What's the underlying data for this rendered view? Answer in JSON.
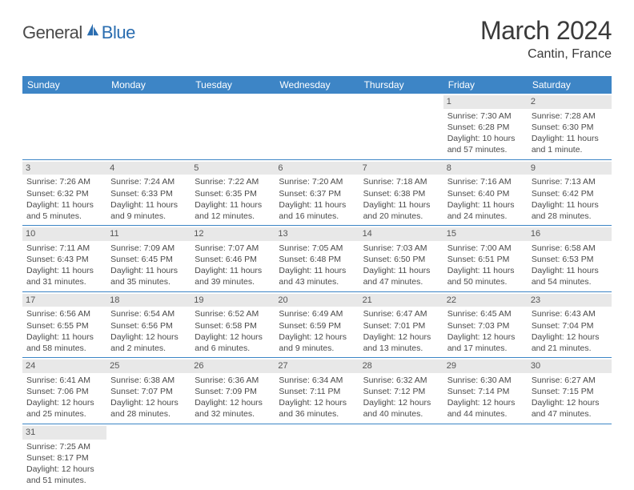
{
  "logo": {
    "text1": "General",
    "text2": "Blue"
  },
  "title": "March 2024",
  "location": "Cantin, France",
  "colors": {
    "header_bg": "#3d85c6",
    "header_text": "#ffffff",
    "daynum_bg": "#e8e8e8",
    "rule": "#3d85c6",
    "logo_blue": "#2a6db0",
    "text": "#4a4a4a"
  },
  "day_headers": [
    "Sunday",
    "Monday",
    "Tuesday",
    "Wednesday",
    "Thursday",
    "Friday",
    "Saturday"
  ],
  "weeks": [
    [
      {
        "n": "",
        "lines": []
      },
      {
        "n": "",
        "lines": []
      },
      {
        "n": "",
        "lines": []
      },
      {
        "n": "",
        "lines": []
      },
      {
        "n": "",
        "lines": []
      },
      {
        "n": "1",
        "lines": [
          "Sunrise: 7:30 AM",
          "Sunset: 6:28 PM",
          "Daylight: 10 hours",
          "and 57 minutes."
        ]
      },
      {
        "n": "2",
        "lines": [
          "Sunrise: 7:28 AM",
          "Sunset: 6:30 PM",
          "Daylight: 11 hours",
          "and 1 minute."
        ]
      }
    ],
    [
      {
        "n": "3",
        "lines": [
          "Sunrise: 7:26 AM",
          "Sunset: 6:32 PM",
          "Daylight: 11 hours",
          "and 5 minutes."
        ]
      },
      {
        "n": "4",
        "lines": [
          "Sunrise: 7:24 AM",
          "Sunset: 6:33 PM",
          "Daylight: 11 hours",
          "and 9 minutes."
        ]
      },
      {
        "n": "5",
        "lines": [
          "Sunrise: 7:22 AM",
          "Sunset: 6:35 PM",
          "Daylight: 11 hours",
          "and 12 minutes."
        ]
      },
      {
        "n": "6",
        "lines": [
          "Sunrise: 7:20 AM",
          "Sunset: 6:37 PM",
          "Daylight: 11 hours",
          "and 16 minutes."
        ]
      },
      {
        "n": "7",
        "lines": [
          "Sunrise: 7:18 AM",
          "Sunset: 6:38 PM",
          "Daylight: 11 hours",
          "and 20 minutes."
        ]
      },
      {
        "n": "8",
        "lines": [
          "Sunrise: 7:16 AM",
          "Sunset: 6:40 PM",
          "Daylight: 11 hours",
          "and 24 minutes."
        ]
      },
      {
        "n": "9",
        "lines": [
          "Sunrise: 7:13 AM",
          "Sunset: 6:42 PM",
          "Daylight: 11 hours",
          "and 28 minutes."
        ]
      }
    ],
    [
      {
        "n": "10",
        "lines": [
          "Sunrise: 7:11 AM",
          "Sunset: 6:43 PM",
          "Daylight: 11 hours",
          "and 31 minutes."
        ]
      },
      {
        "n": "11",
        "lines": [
          "Sunrise: 7:09 AM",
          "Sunset: 6:45 PM",
          "Daylight: 11 hours",
          "and 35 minutes."
        ]
      },
      {
        "n": "12",
        "lines": [
          "Sunrise: 7:07 AM",
          "Sunset: 6:46 PM",
          "Daylight: 11 hours",
          "and 39 minutes."
        ]
      },
      {
        "n": "13",
        "lines": [
          "Sunrise: 7:05 AM",
          "Sunset: 6:48 PM",
          "Daylight: 11 hours",
          "and 43 minutes."
        ]
      },
      {
        "n": "14",
        "lines": [
          "Sunrise: 7:03 AM",
          "Sunset: 6:50 PM",
          "Daylight: 11 hours",
          "and 47 minutes."
        ]
      },
      {
        "n": "15",
        "lines": [
          "Sunrise: 7:00 AM",
          "Sunset: 6:51 PM",
          "Daylight: 11 hours",
          "and 50 minutes."
        ]
      },
      {
        "n": "16",
        "lines": [
          "Sunrise: 6:58 AM",
          "Sunset: 6:53 PM",
          "Daylight: 11 hours",
          "and 54 minutes."
        ]
      }
    ],
    [
      {
        "n": "17",
        "lines": [
          "Sunrise: 6:56 AM",
          "Sunset: 6:55 PM",
          "Daylight: 11 hours",
          "and 58 minutes."
        ]
      },
      {
        "n": "18",
        "lines": [
          "Sunrise: 6:54 AM",
          "Sunset: 6:56 PM",
          "Daylight: 12 hours",
          "and 2 minutes."
        ]
      },
      {
        "n": "19",
        "lines": [
          "Sunrise: 6:52 AM",
          "Sunset: 6:58 PM",
          "Daylight: 12 hours",
          "and 6 minutes."
        ]
      },
      {
        "n": "20",
        "lines": [
          "Sunrise: 6:49 AM",
          "Sunset: 6:59 PM",
          "Daylight: 12 hours",
          "and 9 minutes."
        ]
      },
      {
        "n": "21",
        "lines": [
          "Sunrise: 6:47 AM",
          "Sunset: 7:01 PM",
          "Daylight: 12 hours",
          "and 13 minutes."
        ]
      },
      {
        "n": "22",
        "lines": [
          "Sunrise: 6:45 AM",
          "Sunset: 7:03 PM",
          "Daylight: 12 hours",
          "and 17 minutes."
        ]
      },
      {
        "n": "23",
        "lines": [
          "Sunrise: 6:43 AM",
          "Sunset: 7:04 PM",
          "Daylight: 12 hours",
          "and 21 minutes."
        ]
      }
    ],
    [
      {
        "n": "24",
        "lines": [
          "Sunrise: 6:41 AM",
          "Sunset: 7:06 PM",
          "Daylight: 12 hours",
          "and 25 minutes."
        ]
      },
      {
        "n": "25",
        "lines": [
          "Sunrise: 6:38 AM",
          "Sunset: 7:07 PM",
          "Daylight: 12 hours",
          "and 28 minutes."
        ]
      },
      {
        "n": "26",
        "lines": [
          "Sunrise: 6:36 AM",
          "Sunset: 7:09 PM",
          "Daylight: 12 hours",
          "and 32 minutes."
        ]
      },
      {
        "n": "27",
        "lines": [
          "Sunrise: 6:34 AM",
          "Sunset: 7:11 PM",
          "Daylight: 12 hours",
          "and 36 minutes."
        ]
      },
      {
        "n": "28",
        "lines": [
          "Sunrise: 6:32 AM",
          "Sunset: 7:12 PM",
          "Daylight: 12 hours",
          "and 40 minutes."
        ]
      },
      {
        "n": "29",
        "lines": [
          "Sunrise: 6:30 AM",
          "Sunset: 7:14 PM",
          "Daylight: 12 hours",
          "and 44 minutes."
        ]
      },
      {
        "n": "30",
        "lines": [
          "Sunrise: 6:27 AM",
          "Sunset: 7:15 PM",
          "Daylight: 12 hours",
          "and 47 minutes."
        ]
      }
    ],
    [
      {
        "n": "31",
        "lines": [
          "Sunrise: 7:25 AM",
          "Sunset: 8:17 PM",
          "Daylight: 12 hours",
          "and 51 minutes."
        ]
      },
      {
        "n": "",
        "lines": []
      },
      {
        "n": "",
        "lines": []
      },
      {
        "n": "",
        "lines": []
      },
      {
        "n": "",
        "lines": []
      },
      {
        "n": "",
        "lines": []
      },
      {
        "n": "",
        "lines": []
      }
    ]
  ]
}
